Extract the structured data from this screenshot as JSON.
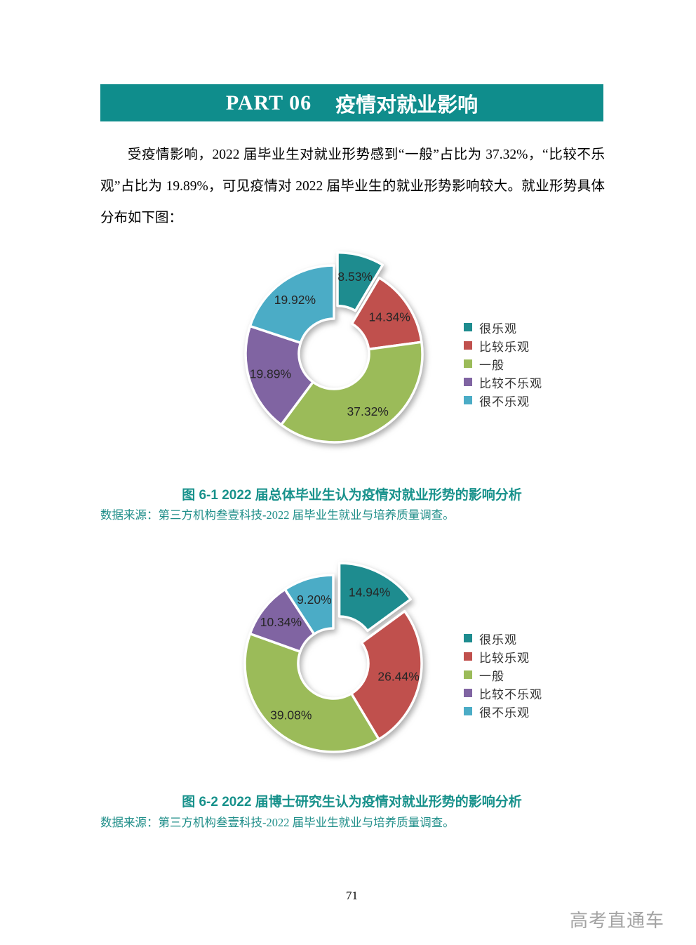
{
  "header": {
    "part": "PART 06",
    "title": "疫情对就业影响",
    "band_color": "#0f8d8c"
  },
  "paragraph": "受疫情影响，2022 届毕业生对就业形势感到“一般”占比为 37.32%，“比较不乐观”占比为 19.89%，可见疫情对 2022 届毕业生的就业形势影响较大。就业形势具体分布如下图：",
  "figures": [
    {
      "caption": "图  6-1  2022 届总体毕业生认为疫情对就业形势的影响分析",
      "source": "数据来源：第三方机构叁壹科技-2022 届毕业生就业与培养质量调查。"
    },
    {
      "caption": "图  6-2  2022 届博士研究生认为疫情对就业形势的影响分析",
      "source": "数据来源：第三方机构叁壹科技-2022 届毕业生就业与培养质量调查。"
    }
  ],
  "chart_data": [
    {
      "type": "pie",
      "subtype": "donut",
      "title": "2022 届总体毕业生认为疫情对就业形势的影响分析",
      "categories": [
        "很乐观",
        "比较乐观",
        "一般",
        "比较不乐观",
        "很不乐观"
      ],
      "values": [
        8.53,
        14.34,
        37.32,
        19.89,
        19.92
      ],
      "colors": [
        "#1e8c8f",
        "#c0504d",
        "#9bbb59",
        "#8064a2",
        "#4bacc6"
      ],
      "data_label_format": "0.00%",
      "exploded_index": 0,
      "start_angle_deg": 0,
      "direction": "clockwise",
      "hole_ratio": 0.4,
      "legend_position": "right"
    },
    {
      "type": "pie",
      "subtype": "donut",
      "title": "2022 届博士研究生认为疫情对就业形势的影响分析",
      "categories": [
        "很乐观",
        "比较乐观",
        "一般",
        "比较不乐观",
        "很不乐观"
      ],
      "values": [
        14.94,
        26.44,
        39.08,
        10.34,
        9.2
      ],
      "colors": [
        "#1e8c8f",
        "#c0504d",
        "#9bbb59",
        "#8064a2",
        "#4bacc6"
      ],
      "data_label_format": "0.00%",
      "exploded_index": 0,
      "start_angle_deg": 0,
      "direction": "clockwise",
      "hole_ratio": 0.4,
      "legend_position": "right"
    }
  ],
  "footer": {
    "page_number": "71",
    "watermark": "高考直通车"
  }
}
